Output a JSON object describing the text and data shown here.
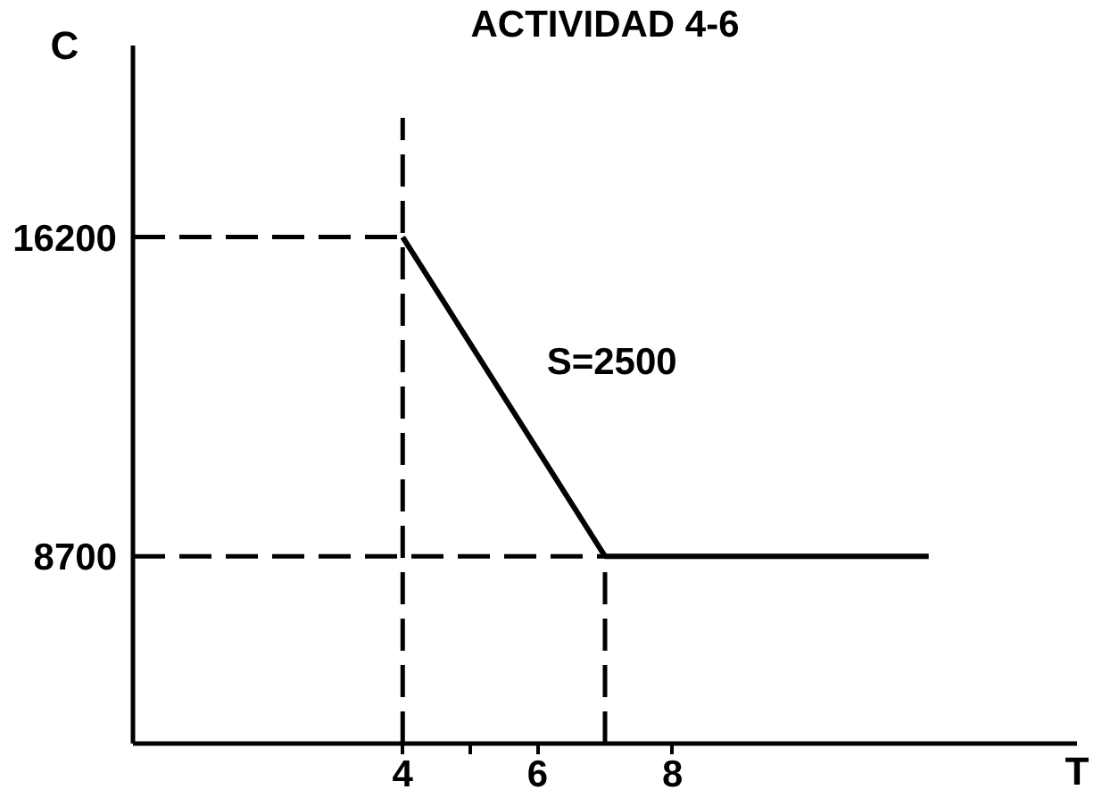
{
  "chart_data": {
    "type": "line",
    "title": "ACTIVIDAD 4-6",
    "xlabel": "T",
    "ylabel": "C",
    "xlim": [
      0,
      14
    ],
    "ylim": [
      4300,
      20700
    ],
    "xticks": [
      4,
      {
        "value": 5,
        "label": null
      },
      6,
      8
    ],
    "yticks": [
      8700,
      16200
    ],
    "grid": false,
    "marker": "none",
    "line_style": "solid",
    "series": [
      {
        "color": "#000000",
        "x": [
          4,
          7,
          11.8
        ],
        "values": [
          16200,
          8700,
          8700
        ]
      },
      {
        "color": "#000000",
        "line_style": "dashed",
        "x": [
          0,
          4
        ],
        "values": [
          16200,
          16200
        ]
      },
      {
        "color": "#000000",
        "line_style": "dashed",
        "x": [
          0,
          7
        ],
        "values": [
          8700,
          8700
        ]
      },
      {
        "color": "#000000",
        "line_style": "dashed",
        "x": [
          4,
          4
        ],
        "values": [
          4300,
          19000
        ]
      },
      {
        "color": "#000000",
        "line_style": "dashed",
        "x": [
          7,
          7
        ],
        "values": [
          4300,
          8700
        ]
      }
    ],
    "annotations": [
      {
        "text": "S=2500",
        "x": 5.5,
        "y": 12450
      }
    ]
  }
}
